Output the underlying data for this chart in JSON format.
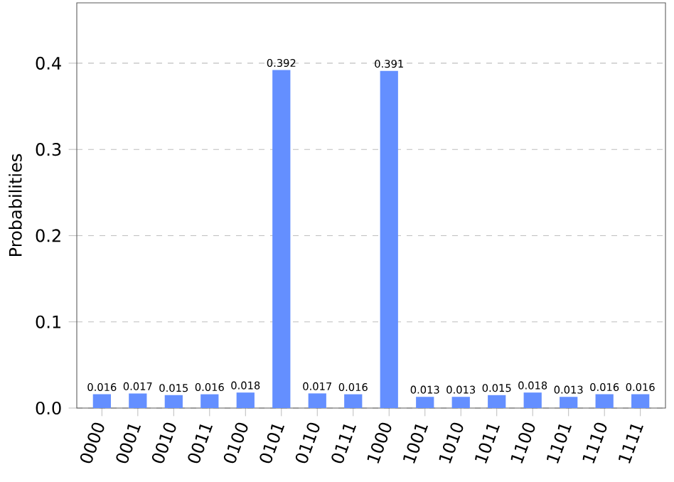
{
  "chart_data": {
    "type": "bar",
    "ylabel": "Probabilities",
    "categories": [
      "0000",
      "0001",
      "0010",
      "0011",
      "0100",
      "0101",
      "0110",
      "0111",
      "1000",
      "1001",
      "1010",
      "1011",
      "1100",
      "1101",
      "1110",
      "1111"
    ],
    "values": [
      0.016,
      0.017,
      0.015,
      0.016,
      0.018,
      0.392,
      0.017,
      0.016,
      0.391,
      0.013,
      0.013,
      0.015,
      0.018,
      0.013,
      0.016,
      0.016
    ],
    "color": "#648fff",
    "ylim": [
      0,
      0.47
    ],
    "yticks": [
      {
        "value": 0,
        "label": "0.0"
      },
      {
        "value": 0.1,
        "label": "0.1"
      },
      {
        "value": 0.2,
        "label": "0.2"
      },
      {
        "value": 0.3,
        "label": "0.3"
      },
      {
        "value": 0.4,
        "label": "0.4"
      }
    ],
    "grid": "y",
    "value_labels": [
      "0.016",
      "0.017",
      "0.015",
      "0.016",
      "0.018",
      "0.392",
      "0.017",
      "0.016",
      "0.391",
      "0.013",
      "0.013",
      "0.015",
      "0.018",
      "0.013",
      "0.016",
      "0.016"
    ]
  }
}
